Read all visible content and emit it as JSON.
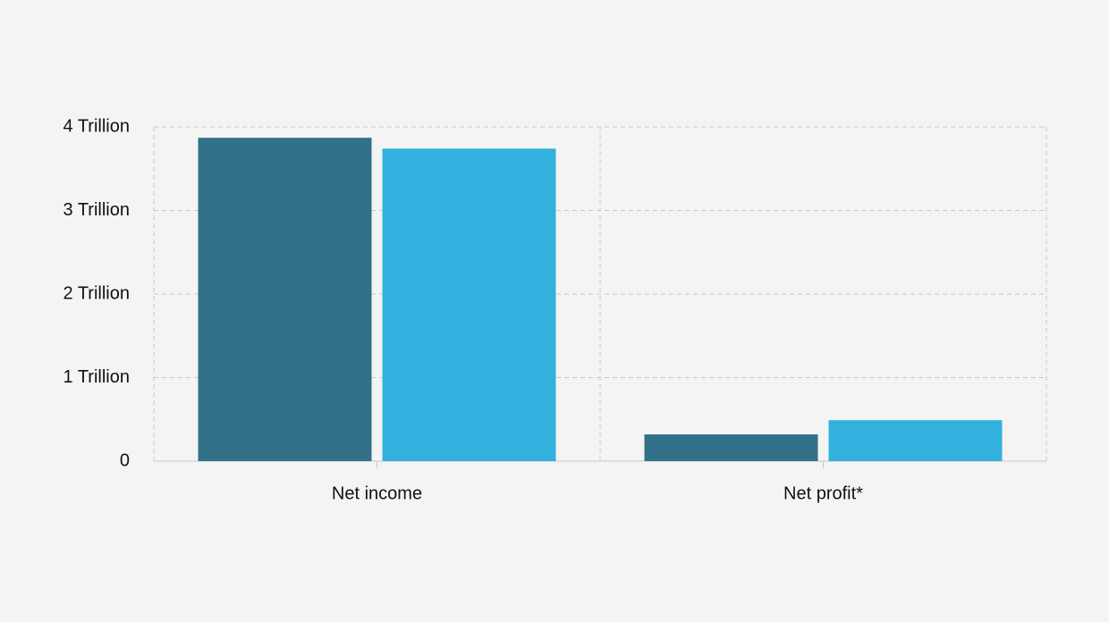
{
  "chart_data": {
    "type": "bar",
    "categories": [
      "Net income",
      "Net profit*"
    ],
    "series": [
      {
        "color": "#317189",
        "values": [
          3.87,
          0.32
        ]
      },
      {
        "color": "#33b1de",
        "values": [
          3.74,
          0.49
        ]
      }
    ],
    "ylim": [
      0,
      4
    ],
    "yticks": [
      0,
      {
        "value": 1,
        "label": "1 Trillion"
      },
      {
        "value": 2,
        "label": "2 Trillion"
      },
      {
        "value": 3,
        "label": "3 Trillion"
      },
      {
        "value": 4,
        "label": "4 Trillion"
      }
    ],
    "grid": true
  }
}
